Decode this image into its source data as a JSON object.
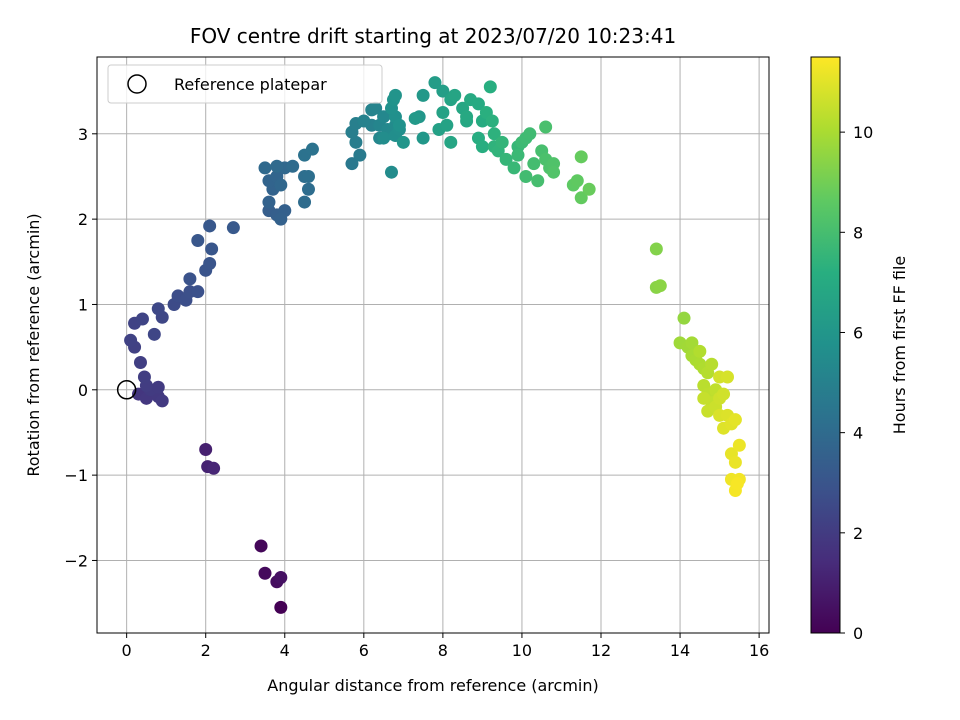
{
  "chart_data": {
    "type": "scatter",
    "title": "FOV centre drift starting at 2023/07/20 10:23:41",
    "xlabel": "Angular distance from reference (arcmin)",
    "ylabel": "Rotation from reference (arcmin)",
    "xlim": [
      -0.75,
      16.25
    ],
    "ylim": [
      -2.85,
      3.9
    ],
    "xticks": [
      0,
      2,
      4,
      6,
      8,
      10,
      12,
      14,
      16
    ],
    "yticks": [
      -2,
      -1,
      0,
      1,
      2,
      3
    ],
    "grid": true,
    "legend": {
      "position": "top-left",
      "entries": [
        "Reference platepar"
      ]
    },
    "reference_point": {
      "x": 0,
      "y": 0,
      "label": "Reference platepar"
    },
    "colorbar": {
      "label": "Hours from first FF file",
      "range": [
        0,
        11.5
      ],
      "ticks": [
        0,
        2,
        4,
        6,
        8,
        10
      ],
      "colormap": "viridis"
    },
    "points": [
      [
        3.9,
        -2.55,
        0.0
      ],
      [
        3.4,
        -1.83,
        0.2
      ],
      [
        3.5,
        -2.15,
        0.3
      ],
      [
        3.8,
        -2.25,
        0.4
      ],
      [
        3.9,
        -2.2,
        0.5
      ],
      [
        2.0,
        -0.7,
        1.0
      ],
      [
        2.05,
        -0.9,
        1.1
      ],
      [
        2.2,
        -0.92,
        1.2
      ],
      [
        0.3,
        -0.05,
        1.8
      ],
      [
        0.5,
        -0.1,
        1.85
      ],
      [
        0.8,
        -0.08,
        1.9
      ],
      [
        0.9,
        -0.13,
        1.95
      ],
      [
        0.6,
        0.0,
        2.0
      ],
      [
        0.8,
        0.03,
        2.0
      ],
      [
        0.5,
        0.05,
        2.05
      ],
      [
        0.45,
        0.15,
        2.1
      ],
      [
        0.35,
        0.32,
        2.15
      ],
      [
        0.2,
        0.5,
        2.2
      ],
      [
        0.1,
        0.58,
        2.25
      ],
      [
        0.2,
        0.78,
        2.3
      ],
      [
        0.4,
        0.83,
        2.35
      ],
      [
        0.7,
        0.65,
        2.4
      ],
      [
        0.9,
        0.85,
        2.45
      ],
      [
        0.8,
        0.95,
        2.5
      ],
      [
        1.2,
        1.0,
        2.6
      ],
      [
        1.3,
        1.1,
        2.7
      ],
      [
        1.5,
        1.05,
        2.75
      ],
      [
        1.6,
        1.15,
        2.8
      ],
      [
        1.8,
        1.15,
        2.85
      ],
      [
        1.6,
        1.3,
        2.9
      ],
      [
        2.0,
        1.4,
        2.95
      ],
      [
        2.1,
        1.48,
        3.0
      ],
      [
        2.15,
        1.65,
        3.05
      ],
      [
        1.8,
        1.75,
        3.1
      ],
      [
        2.1,
        1.92,
        3.15
      ],
      [
        2.7,
        1.9,
        3.2
      ],
      [
        3.6,
        2.1,
        3.4
      ],
      [
        3.8,
        2.05,
        3.45
      ],
      [
        4.0,
        2.1,
        3.5
      ],
      [
        3.9,
        2.0,
        3.55
      ],
      [
        3.6,
        2.2,
        3.6
      ],
      [
        3.7,
        2.35,
        3.65
      ],
      [
        3.6,
        2.45,
        3.7
      ],
      [
        3.8,
        2.5,
        3.75
      ],
      [
        3.9,
        2.4,
        3.8
      ],
      [
        4.0,
        2.6,
        3.85
      ],
      [
        3.5,
        2.6,
        3.9
      ],
      [
        3.8,
        2.62,
        3.95
      ],
      [
        4.2,
        2.62,
        4.0
      ],
      [
        4.5,
        2.2,
        4.05
      ],
      [
        4.6,
        2.35,
        4.1
      ],
      [
        4.5,
        2.5,
        4.15
      ],
      [
        4.6,
        2.5,
        4.2
      ],
      [
        4.5,
        2.75,
        4.3
      ],
      [
        4.7,
        2.82,
        4.35
      ],
      [
        5.7,
        2.65,
        4.6
      ],
      [
        5.9,
        2.75,
        4.7
      ],
      [
        5.8,
        2.9,
        4.8
      ],
      [
        5.7,
        3.02,
        4.85
      ],
      [
        5.8,
        3.12,
        4.9
      ],
      [
        6.2,
        3.1,
        5.0
      ],
      [
        6.0,
        3.15,
        5.05
      ],
      [
        6.2,
        3.28,
        5.1
      ],
      [
        6.3,
        3.3,
        5.15
      ],
      [
        6.4,
        3.1,
        5.2
      ],
      [
        6.4,
        2.95,
        5.25
      ],
      [
        6.5,
        3.2,
        5.3
      ],
      [
        6.6,
        3.05,
        5.35
      ],
      [
        6.7,
        3.0,
        5.4
      ],
      [
        6.8,
        3.1,
        5.45
      ],
      [
        6.7,
        2.55,
        5.5
      ],
      [
        6.5,
        2.95,
        5.55
      ],
      [
        6.8,
        2.98,
        5.6
      ],
      [
        6.9,
        3.05,
        5.65
      ],
      [
        6.8,
        3.2,
        5.7
      ],
      [
        6.7,
        3.3,
        5.75
      ],
      [
        6.9,
        3.1,
        5.8
      ],
      [
        6.75,
        3.4,
        5.85
      ],
      [
        6.8,
        3.45,
        5.9
      ],
      [
        7.0,
        2.9,
        5.95
      ],
      [
        7.4,
        3.2,
        6.0
      ],
      [
        7.5,
        2.95,
        6.05
      ],
      [
        7.5,
        3.45,
        6.1
      ],
      [
        7.3,
        3.18,
        6.15
      ],
      [
        7.8,
        3.6,
        6.3
      ],
      [
        8.0,
        3.5,
        6.4
      ],
      [
        7.9,
        3.05,
        6.5
      ],
      [
        8.0,
        3.25,
        6.55
      ],
      [
        8.1,
        3.1,
        6.6
      ],
      [
        8.2,
        3.4,
        6.65
      ],
      [
        8.3,
        3.45,
        6.7
      ],
      [
        8.2,
        2.9,
        6.75
      ],
      [
        8.5,
        3.3,
        6.8
      ],
      [
        8.6,
        3.15,
        6.85
      ],
      [
        8.6,
        3.2,
        6.9
      ],
      [
        8.7,
        3.4,
        6.95
      ],
      [
        8.9,
        3.35,
        7.0
      ],
      [
        9.0,
        3.15,
        7.05
      ],
      [
        8.9,
        2.95,
        7.1
      ],
      [
        9.0,
        2.85,
        7.15
      ],
      [
        9.2,
        3.55,
        7.2
      ],
      [
        9.1,
        3.25,
        7.25
      ],
      [
        9.25,
        3.15,
        7.3
      ],
      [
        9.3,
        3.0,
        7.35
      ],
      [
        9.3,
        2.85,
        7.4
      ],
      [
        9.4,
        2.8,
        7.45
      ],
      [
        9.5,
        2.9,
        7.5
      ],
      [
        9.6,
        2.7,
        7.55
      ],
      [
        9.9,
        2.85,
        7.6
      ],
      [
        9.8,
        2.6,
        7.65
      ],
      [
        9.9,
        2.75,
        7.7
      ],
      [
        10.0,
        2.9,
        7.75
      ],
      [
        10.1,
        2.95,
        7.8
      ],
      [
        10.2,
        3.0,
        7.85
      ],
      [
        10.1,
        2.5,
        7.9
      ],
      [
        10.3,
        2.65,
        7.95
      ],
      [
        10.4,
        2.45,
        8.0
      ],
      [
        10.5,
        2.8,
        8.05
      ],
      [
        10.6,
        3.08,
        8.1
      ],
      [
        10.6,
        2.7,
        8.15
      ],
      [
        10.7,
        2.6,
        8.2
      ],
      [
        10.8,
        2.65,
        8.25
      ],
      [
        10.8,
        2.55,
        8.3
      ],
      [
        11.3,
        2.4,
        8.6
      ],
      [
        11.4,
        2.45,
        8.65
      ],
      [
        11.5,
        2.25,
        8.7
      ],
      [
        11.5,
        2.73,
        8.75
      ],
      [
        11.7,
        2.35,
        8.8
      ],
      [
        13.4,
        1.65,
        9.3
      ],
      [
        13.4,
        1.2,
        9.4
      ],
      [
        13.5,
        1.22,
        9.45
      ],
      [
        14.1,
        0.84,
        9.6
      ],
      [
        14.0,
        0.55,
        9.8
      ],
      [
        14.2,
        0.5,
        9.85
      ],
      [
        14.3,
        0.55,
        9.9
      ],
      [
        14.3,
        0.4,
        9.95
      ],
      [
        14.4,
        0.35,
        10.0
      ],
      [
        14.5,
        0.3,
        10.05
      ],
      [
        14.6,
        0.25,
        10.1
      ],
      [
        14.5,
        0.45,
        10.15
      ],
      [
        14.7,
        0.2,
        10.2
      ],
      [
        14.8,
        0.3,
        10.25
      ],
      [
        14.6,
        0.05,
        10.3
      ],
      [
        14.7,
        -0.05,
        10.35
      ],
      [
        14.9,
        0.0,
        10.4
      ],
      [
        14.8,
        -0.15,
        10.45
      ],
      [
        14.6,
        -0.1,
        10.5
      ],
      [
        14.7,
        -0.25,
        10.55
      ],
      [
        14.9,
        -0.2,
        10.6
      ],
      [
        15.0,
        -0.1,
        10.65
      ],
      [
        15.1,
        -0.05,
        10.7
      ],
      [
        15.0,
        0.15,
        10.75
      ],
      [
        15.2,
        0.15,
        10.8
      ],
      [
        15.0,
        -0.3,
        10.85
      ],
      [
        15.2,
        -0.3,
        10.9
      ],
      [
        15.1,
        -0.45,
        10.95
      ],
      [
        15.3,
        -0.4,
        11.0
      ],
      [
        15.4,
        -0.35,
        11.05
      ],
      [
        15.3,
        -0.75,
        11.1
      ],
      [
        15.4,
        -0.85,
        11.15
      ],
      [
        15.5,
        -0.65,
        11.2
      ],
      [
        15.3,
        -1.05,
        11.25
      ],
      [
        15.5,
        -1.05,
        11.3
      ],
      [
        15.4,
        -1.18,
        11.35
      ],
      [
        15.45,
        -1.1,
        11.4
      ]
    ]
  }
}
